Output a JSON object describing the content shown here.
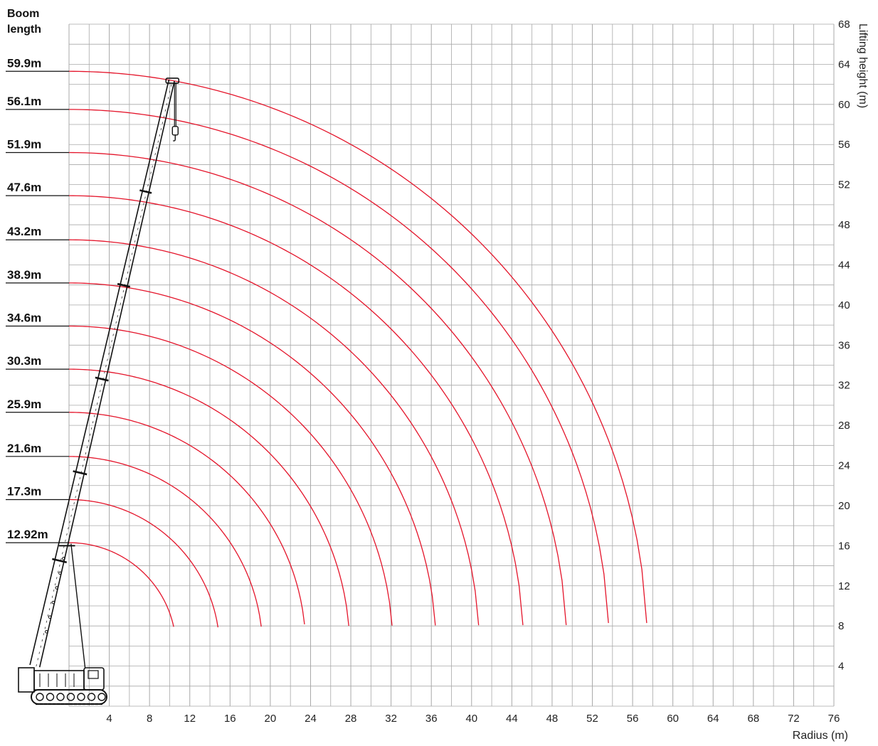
{
  "chart_data": {
    "type": "line",
    "title": "",
    "left_header": [
      "Boom",
      "length"
    ],
    "xlabel": "Radius (m)",
    "ylabel": "Lifting height (m)",
    "xlim": [
      0,
      76
    ],
    "ylim": [
      0,
      68
    ],
    "x_ticks": [
      4,
      8,
      12,
      16,
      20,
      24,
      28,
      32,
      36,
      40,
      44,
      48,
      52,
      56,
      60,
      64,
      68,
      72,
      76
    ],
    "y_ticks": [
      4,
      8,
      12,
      16,
      20,
      24,
      28,
      32,
      36,
      40,
      44,
      48,
      52,
      56,
      60,
      64,
      68
    ],
    "grid": true,
    "arc_end_height": 3.4,
    "series": [
      {
        "name": "12.92m",
        "top_height": 16.3,
        "end_radius": 10.4
      },
      {
        "name": "17.3m",
        "top_height": 20.6,
        "end_radius": 14.8
      },
      {
        "name": "21.6m",
        "top_height": 24.9,
        "end_radius": 19.1
      },
      {
        "name": "25.9m",
        "top_height": 29.3,
        "end_radius": 23.4
      },
      {
        "name": "30.3m",
        "top_height": 33.6,
        "end_radius": 27.8
      },
      {
        "name": "34.6m",
        "top_height": 37.9,
        "end_radius": 32.1
      },
      {
        "name": "38.9m",
        "top_height": 42.2,
        "end_radius": 36.4
      },
      {
        "name": "43.2m",
        "top_height": 46.5,
        "end_radius": 40.7
      },
      {
        "name": "47.6m",
        "top_height": 50.9,
        "end_radius": 45.1
      },
      {
        "name": "51.9m",
        "top_height": 55.2,
        "end_radius": 49.4
      },
      {
        "name": "56.1m",
        "top_height": 59.5,
        "end_radius": 53.6
      },
      {
        "name": "59.9m",
        "top_height": 63.3,
        "end_radius": 57.4
      }
    ],
    "boom_tip": {
      "radius": 10.2,
      "height": 62.4
    },
    "boom_base": {
      "radius": -3.4,
      "height": 4.0
    },
    "colors": {
      "arc": "#e4142a",
      "grid": "#a8a8a8",
      "text": "#111111"
    }
  }
}
